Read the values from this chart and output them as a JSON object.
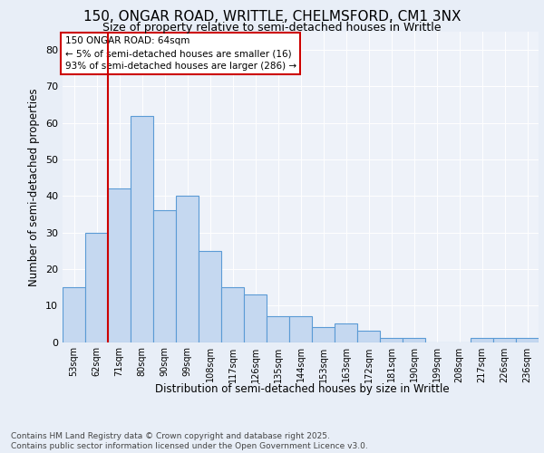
{
  "title_line1": "150, ONGAR ROAD, WRITTLE, CHELMSFORD, CM1 3NX",
  "title_line2": "Size of property relative to semi-detached houses in Writtle",
  "xlabel": "Distribution of semi-detached houses by size in Writtle",
  "ylabel": "Number of semi-detached properties",
  "categories": [
    "53sqm",
    "62sqm",
    "71sqm",
    "80sqm",
    "90sqm",
    "99sqm",
    "108sqm",
    "117sqm",
    "126sqm",
    "135sqm",
    "144sqm",
    "153sqm",
    "163sqm",
    "172sqm",
    "181sqm",
    "190sqm",
    "199sqm",
    "208sqm",
    "217sqm",
    "226sqm",
    "236sqm"
  ],
  "values": [
    15,
    30,
    42,
    62,
    36,
    40,
    25,
    15,
    13,
    7,
    7,
    4,
    5,
    3,
    1,
    1,
    0,
    0,
    1,
    1,
    1
  ],
  "bar_color": "#c5d8f0",
  "bar_edge_color": "#5b9bd5",
  "bar_linewidth": 0.8,
  "marker_color": "#cc0000",
  "annotation_text": "150 ONGAR ROAD: 64sqm\n← 5% of semi-detached houses are smaller (16)\n93% of semi-detached houses are larger (286) →",
  "annotation_box_color": "#ffffff",
  "annotation_border_color": "#cc0000",
  "ylim": [
    0,
    85
  ],
  "yticks": [
    0,
    10,
    20,
    30,
    40,
    50,
    60,
    70,
    80
  ],
  "background_color": "#e8eef7",
  "plot_background_color": "#eef2f9",
  "footer_text": "Contains HM Land Registry data © Crown copyright and database right 2025.\nContains public sector information licensed under the Open Government Licence v3.0.",
  "title_fontsize": 11,
  "subtitle_fontsize": 9,
  "tick_fontsize": 7,
  "label_fontsize": 8.5,
  "annotation_fontsize": 7.5,
  "footer_fontsize": 6.5
}
